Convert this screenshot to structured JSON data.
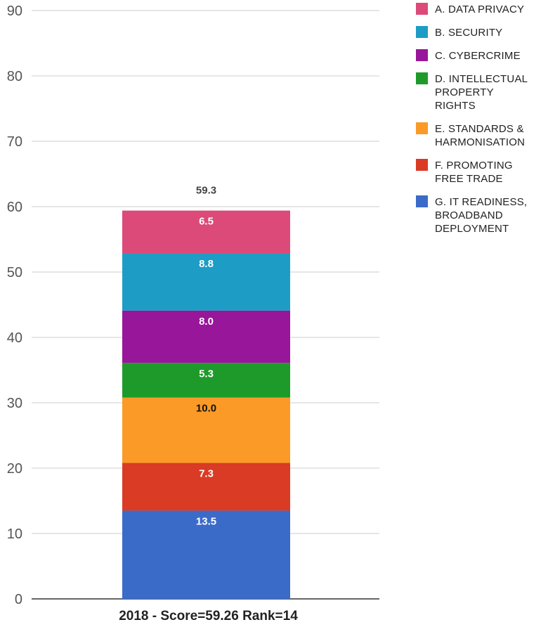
{
  "chart_data": {
    "type": "bar",
    "stacked": true,
    "categories": [
      "2018 - Score=59.26 Rank=14"
    ],
    "total_labels": [
      "59.3"
    ],
    "ylim": [
      0,
      90
    ],
    "yticks": [
      0,
      10,
      20,
      30,
      40,
      50,
      60,
      70,
      80,
      90
    ],
    "grid": true,
    "legend_position": "right",
    "series": [
      {
        "name": "G. IT READINESS, BROADBAND DEPLOYMENT",
        "values": [
          13.5
        ],
        "labels": [
          "13.5"
        ],
        "color": "#3b6bc9",
        "label_color": "#ffffff"
      },
      {
        "name": "F. PROMOTING FREE TRADE",
        "values": [
          7.3
        ],
        "labels": [
          "7.3"
        ],
        "color": "#d93b25",
        "label_color": "#ffffff"
      },
      {
        "name": "E. STANDARDS & HARMONISATION",
        "values": [
          10.0
        ],
        "labels": [
          "10.0"
        ],
        "color": "#fb9a26",
        "label_color": "#111111"
      },
      {
        "name": "D. INTELLECTUAL PROPERTY RIGHTS",
        "values": [
          5.3
        ],
        "labels": [
          "5.3"
        ],
        "color": "#1e9a2a",
        "label_color": "#ffffff"
      },
      {
        "name": "C. CYBERCRIME",
        "values": [
          8.0
        ],
        "labels": [
          "8.0"
        ],
        "color": "#97169a",
        "label_color": "#ffffff"
      },
      {
        "name": "B. SECURITY",
        "values": [
          8.8
        ],
        "labels": [
          "8.8"
        ],
        "color": "#1d9cc6",
        "label_color": "#ffffff"
      },
      {
        "name": "A. DATA PRIVACY",
        "values": [
          6.5
        ],
        "labels": [
          "6.5"
        ],
        "color": "#dc4a7a",
        "label_color": "#ffffff"
      }
    ],
    "legend": [
      {
        "text": "A. DATA PRIVACY",
        "lines": [
          "A. DATA PRIVACY"
        ],
        "color": "#dc4a7a"
      },
      {
        "text": "B. SECURITY",
        "lines": [
          "B. SECURITY"
        ],
        "color": "#1d9cc6"
      },
      {
        "text": "C. CYBERCRIME",
        "lines": [
          "C. CYBERCRIME"
        ],
        "color": "#97169a"
      },
      {
        "text": "D. INTELLECTUAL PROPERTY RIGHTS",
        "lines": [
          "D. INTELLECTUAL",
          "PROPERTY",
          "RIGHTS"
        ],
        "color": "#1e9a2a"
      },
      {
        "text": "E. STANDARDS & HARMONISATION",
        "lines": [
          "E. STANDARDS &",
          "HARMONISATION"
        ],
        "color": "#fb9a26"
      },
      {
        "text": "F. PROMOTING FREE TRADE",
        "lines": [
          "F. PROMOTING",
          "FREE TRADE"
        ],
        "color": "#d93b25"
      },
      {
        "text": "G. IT READINESS, BROADBAND DEPLOYMENT",
        "lines": [
          "G. IT READINESS,",
          "BROADBAND",
          "DEPLOYMENT"
        ],
        "color": "#3b6bc9"
      }
    ]
  }
}
